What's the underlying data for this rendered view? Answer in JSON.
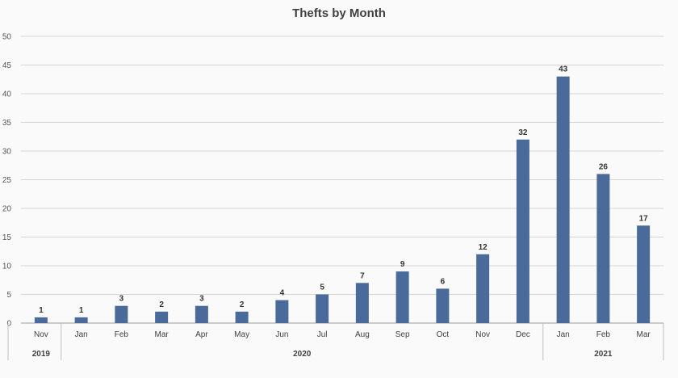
{
  "chart_data": {
    "type": "bar",
    "title": "Thefts by Month",
    "categories": [
      "Nov",
      "Jan",
      "Feb",
      "Mar",
      "Apr",
      "May",
      "Jun",
      "Jul",
      "Aug",
      "Sep",
      "Oct",
      "Nov",
      "Dec",
      "Jan",
      "Feb",
      "Mar"
    ],
    "year_groups": [
      {
        "label": "2019",
        "count": 1
      },
      {
        "label": "2020",
        "count": 12
      },
      {
        "label": "2021",
        "count": 3
      }
    ],
    "values": [
      1,
      1,
      3,
      2,
      3,
      2,
      4,
      5,
      7,
      9,
      6,
      12,
      32,
      43,
      26,
      17
    ],
    "ylim": [
      0,
      50
    ],
    "yticks": [
      0,
      5,
      10,
      15,
      20,
      25,
      30,
      35,
      40,
      45,
      50
    ],
    "grid": true,
    "data_labels": true,
    "bar_color": "#4a6a9a"
  }
}
